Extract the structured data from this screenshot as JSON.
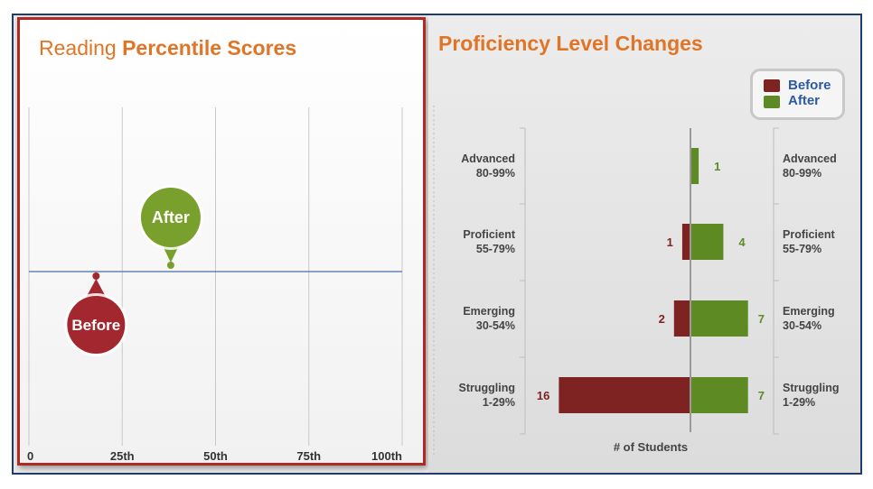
{
  "left_panel": {
    "title_prefix": "Reading",
    "title_bold": "Percentile Scores",
    "markers": [
      {
        "label": "Before",
        "color": "#a3272e"
      },
      {
        "label": "After",
        "color": "#79a02c"
      }
    ]
  },
  "right_panel": {
    "title": "Proficiency Level Changes",
    "legend": {
      "before_label": "Before",
      "after_label": "After",
      "before_color": "#7e2321",
      "after_color": "#5e8a23"
    }
  },
  "chart_data": [
    {
      "type": "scatter",
      "title": "Reading Percentile Scores",
      "xlim": [
        0,
        100
      ],
      "tick_values": [
        0,
        25,
        50,
        75,
        100
      ],
      "tick_labels": [
        "0",
        "25th",
        "50th",
        "75th",
        "100th"
      ],
      "grid": true,
      "series": [
        {
          "name": "Before",
          "x": 18
        },
        {
          "name": "After",
          "x": 38
        }
      ]
    },
    {
      "type": "bar",
      "title": "Proficiency Level Changes",
      "xlabel": "# of Students",
      "categories": [
        [
          "Advanced",
          "80-99%"
        ],
        [
          "Proficient",
          "55-79%"
        ],
        [
          "Emerging",
          "30-54%"
        ],
        [
          "Struggling",
          "1-29%"
        ]
      ],
      "series": [
        {
          "name": "Before",
          "values": [
            0,
            1,
            2,
            16
          ],
          "color": "#7e2321"
        },
        {
          "name": "After",
          "values": [
            1,
            4,
            7,
            7
          ],
          "color": "#5e8a23"
        }
      ],
      "legend": "top-right"
    }
  ]
}
